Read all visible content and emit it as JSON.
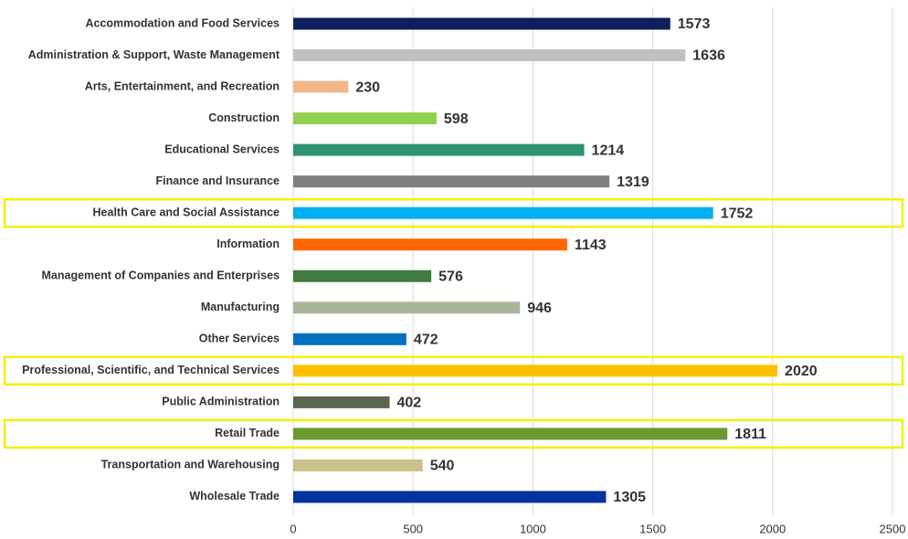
{
  "chart_data": {
    "type": "barh",
    "categories": [
      "Accommodation and Food Services",
      "Administration & Support, Waste Management",
      "Arts, Entertainment, and Recreation",
      "Construction",
      "Educational Services",
      "Finance and Insurance",
      "Health Care and Social Assistance",
      "Information",
      "Management of Companies and Enterprises",
      "Manufacturing",
      "Other Services",
      "Professional, Scientific, and Technical Services",
      "Public Administration",
      "Retail Trade",
      "Transportation and Warehousing",
      "Wholesale Trade"
    ],
    "values": [
      1573,
      1636,
      230,
      598,
      1214,
      1319,
      1752,
      1143,
      576,
      946,
      472,
      2020,
      402,
      1811,
      540,
      1305
    ],
    "colors": [
      "#0d1f5c",
      "#c0c0c0",
      "#f0b88a",
      "#92d050",
      "#2e9474",
      "#7f7f7f",
      "#00b0f0",
      "#ff6600",
      "#3f7a3f",
      "#a9b59a",
      "#0070c0",
      "#ffc000",
      "#5a6650",
      "#6a9a2e",
      "#c9c28a",
      "#0033a0"
    ],
    "highlighted": [
      false,
      false,
      false,
      false,
      false,
      false,
      true,
      false,
      false,
      false,
      false,
      true,
      false,
      true,
      false,
      false
    ],
    "highlight_color": "#f5f000",
    "xlim": [
      0,
      2500
    ],
    "xticks": [
      0,
      500,
      1000,
      1500,
      2000,
      2500
    ],
    "grid": true
  }
}
